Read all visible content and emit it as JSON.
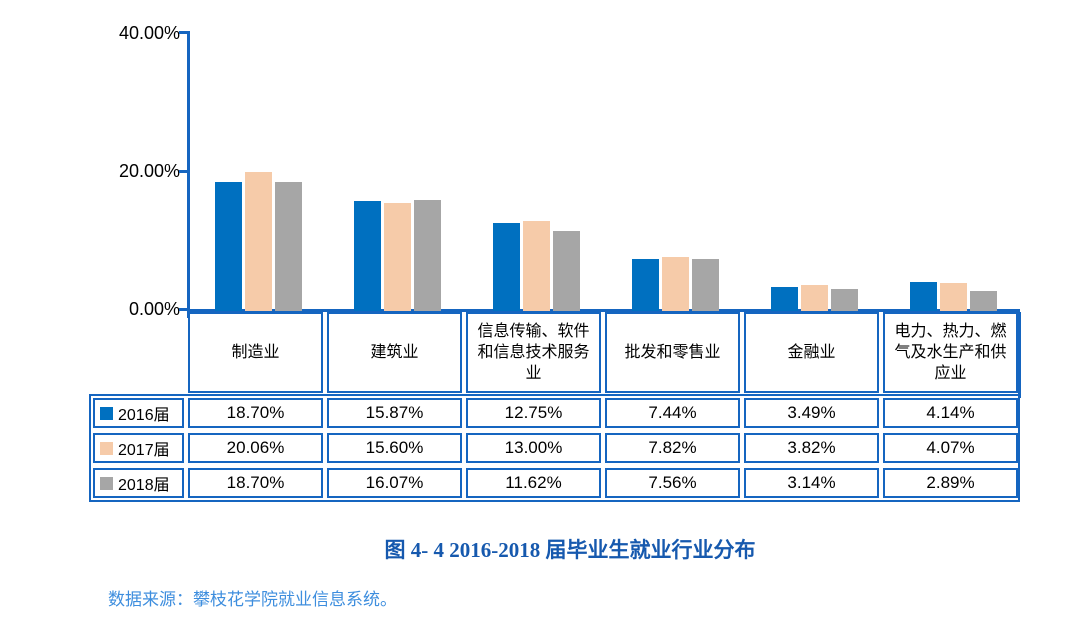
{
  "chart_data": {
    "type": "bar",
    "title": "图 4- 4  2016-2018 届毕业生就业行业分布",
    "categories": [
      "制造业",
      "建筑业",
      "信息传输、软件和信息技术服务业",
      "批发和零售业",
      "金融业",
      "电力、热力、燃气及水生产和供应业"
    ],
    "series": [
      {
        "name": "2016届",
        "color": "#0070C0",
        "values": [
          18.7,
          15.87,
          12.75,
          7.44,
          3.49,
          4.14
        ]
      },
      {
        "name": "2017届",
        "color": "#F6CBA9",
        "values": [
          20.06,
          15.6,
          13.0,
          7.82,
          3.82,
          4.07
        ]
      },
      {
        "name": "2018届",
        "color": "#A6A6A6",
        "values": [
          18.7,
          16.07,
          11.62,
          7.56,
          3.14,
          2.89
        ]
      }
    ],
    "value_format": "percent-2dp",
    "yticks": [
      "40.00%",
      "20.00%",
      "0.00%"
    ],
    "ylim": [
      0,
      40
    ],
    "grid": false,
    "legend_position": "table-left",
    "axis_color": "#1565C0",
    "data_table_shown": true
  },
  "caption": "图 4- 4  2016-2018 届毕业生就业行业分布",
  "source_note": "数据来源：攀枝花学院就业信息系统。",
  "colors": {
    "table_border": "#1565C0",
    "caption_text": "#1659AE",
    "source_text": "#3E8EDE",
    "background": "#FFFFFF"
  }
}
